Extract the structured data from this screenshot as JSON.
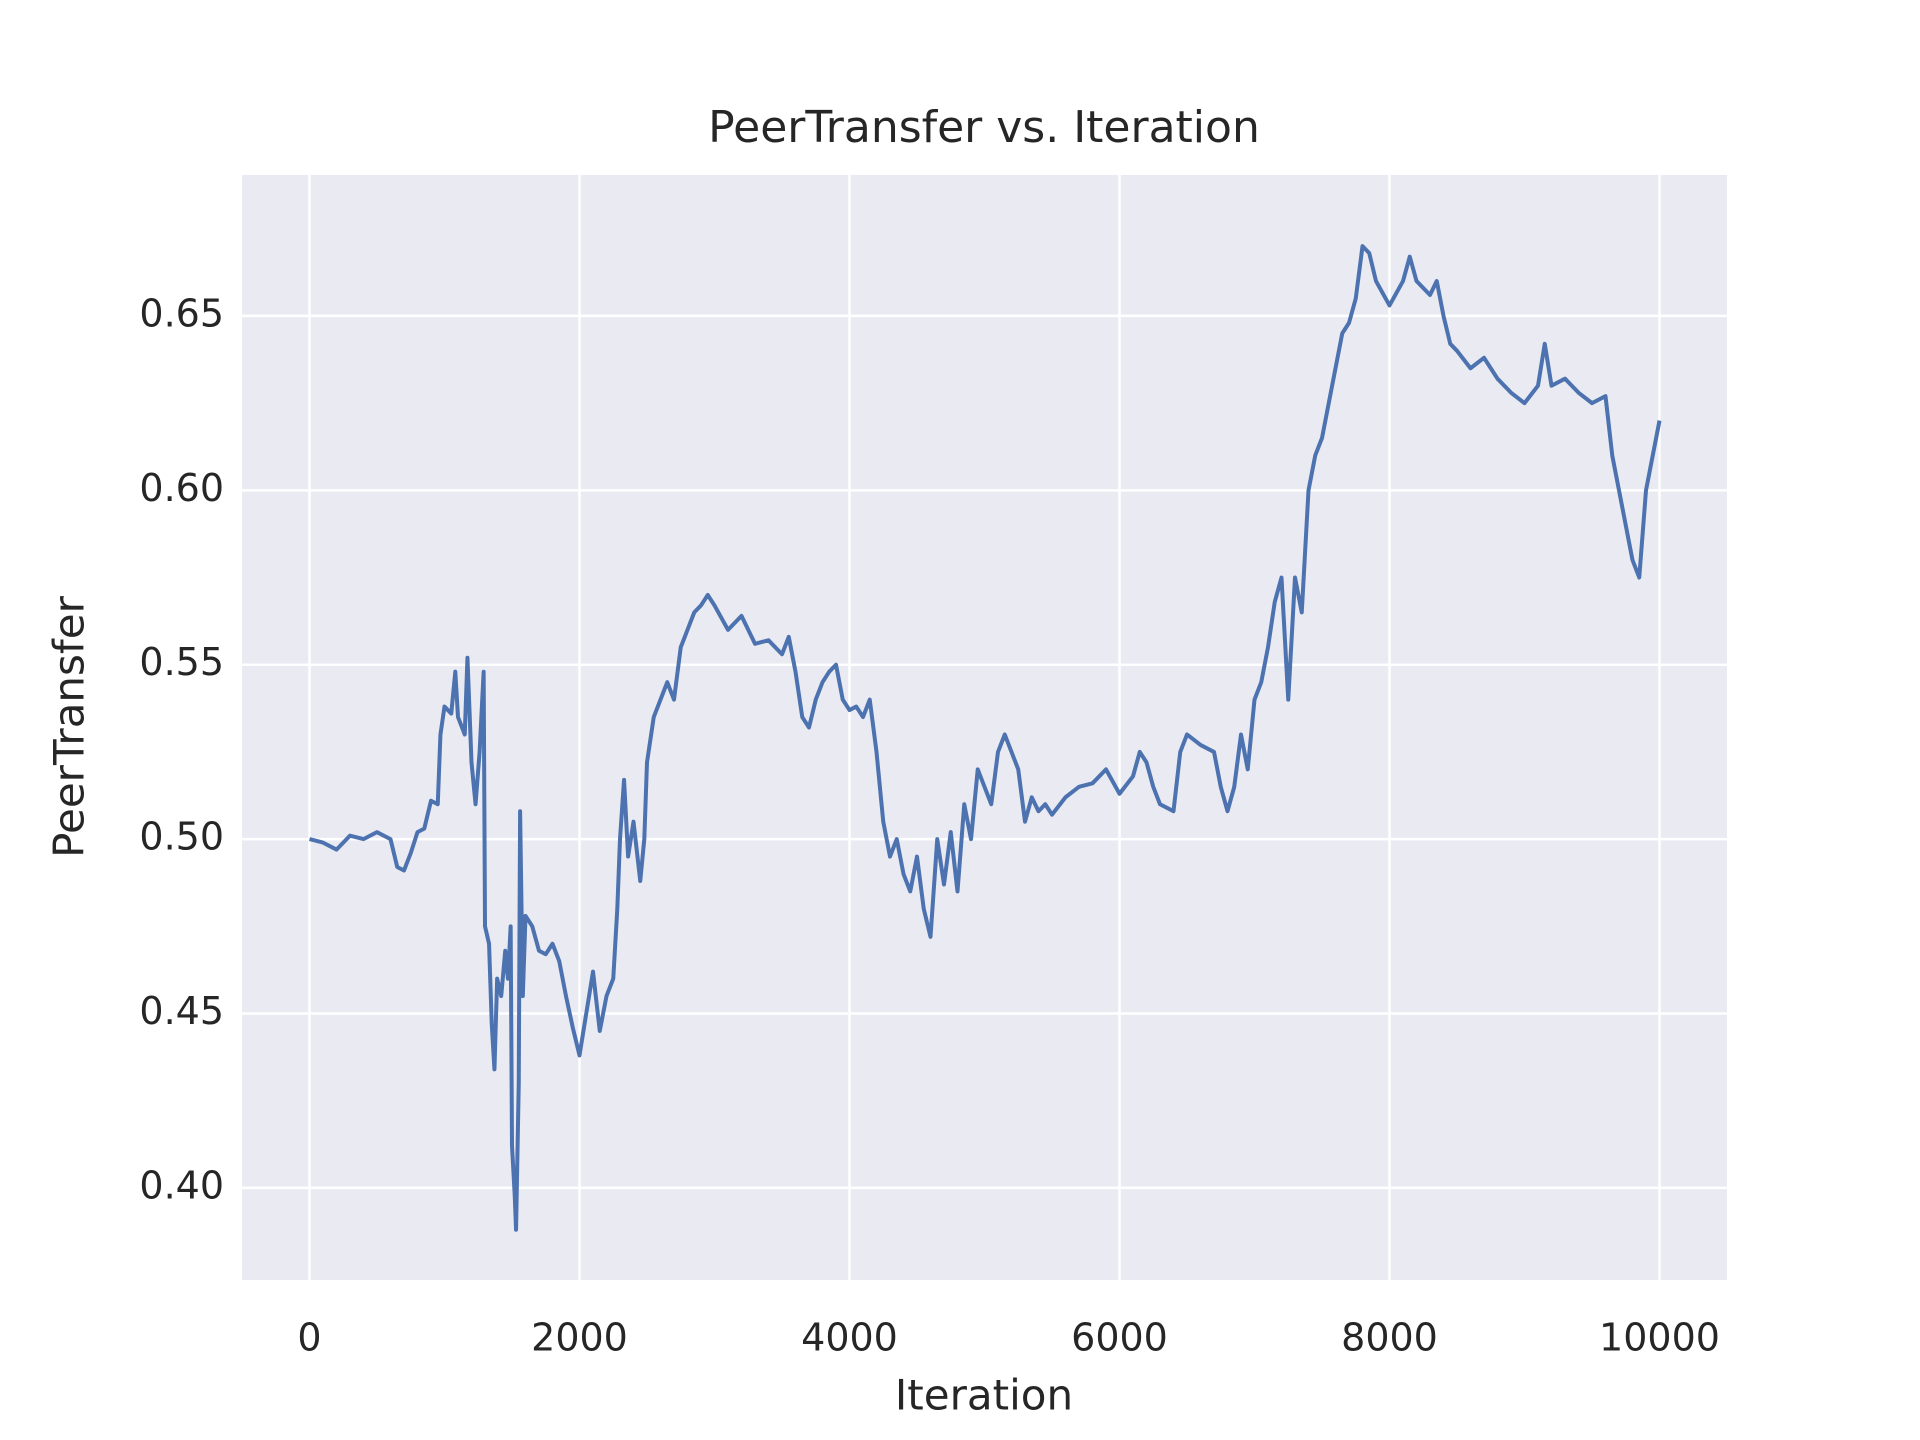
{
  "chart_data": {
    "type": "line",
    "title": "PeerTransfer vs. Iteration",
    "x_label": "Iteration",
    "y_label": "PeerTransfer",
    "x": [
      0,
      100,
      200,
      300,
      400,
      500,
      600,
      650,
      700,
      750,
      800,
      850,
      900,
      950,
      970,
      1000,
      1050,
      1080,
      1100,
      1150,
      1170,
      1200,
      1230,
      1260,
      1290,
      1300,
      1330,
      1350,
      1370,
      1390,
      1420,
      1450,
      1470,
      1490,
      1500,
      1520,
      1530,
      1550,
      1560,
      1580,
      1600,
      1650,
      1700,
      1750,
      1800,
      1850,
      1900,
      1950,
      2000,
      2050,
      2100,
      2150,
      2200,
      2250,
      2280,
      2300,
      2330,
      2360,
      2400,
      2450,
      2480,
      2500,
      2550,
      2600,
      2650,
      2700,
      2750,
      2800,
      2850,
      2900,
      2950,
      3000,
      3100,
      3200,
      3300,
      3400,
      3500,
      3550,
      3600,
      3650,
      3700,
      3750,
      3800,
      3850,
      3900,
      3950,
      4000,
      4050,
      4100,
      4150,
      4200,
      4250,
      4300,
      4350,
      4400,
      4450,
      4500,
      4550,
      4600,
      4650,
      4700,
      4750,
      4800,
      4850,
      4900,
      4950,
      5000,
      5050,
      5100,
      5150,
      5200,
      5250,
      5300,
      5350,
      5400,
      5450,
      5500,
      5600,
      5700,
      5800,
      5900,
      6000,
      6100,
      6150,
      6200,
      6250,
      6300,
      6400,
      6450,
      6500,
      6600,
      6700,
      6750,
      6800,
      6850,
      6900,
      6950,
      7000,
      7050,
      7100,
      7150,
      7200,
      7250,
      7300,
      7350,
      7400,
      7450,
      7500,
      7550,
      7600,
      7650,
      7700,
      7750,
      7800,
      7850,
      7900,
      8000,
      8100,
      8150,
      8200,
      8300,
      8350,
      8400,
      8450,
      8500,
      8600,
      8700,
      8800,
      8900,
      9000,
      9100,
      9150,
      9200,
      9300,
      9400,
      9500,
      9600,
      9650,
      9700,
      9750,
      9800,
      9850,
      9900,
      9950,
      10000
    ],
    "series": [
      {
        "name": "PeerTransfer",
        "color": "#4c72b0",
        "values": [
          0.5,
          0.499,
          0.497,
          0.501,
          0.5,
          0.502,
          0.5,
          0.492,
          0.491,
          0.496,
          0.502,
          0.503,
          0.511,
          0.51,
          0.53,
          0.538,
          0.536,
          0.548,
          0.535,
          0.53,
          0.552,
          0.522,
          0.51,
          0.525,
          0.548,
          0.475,
          0.47,
          0.447,
          0.434,
          0.46,
          0.455,
          0.468,
          0.46,
          0.475,
          0.412,
          0.398,
          0.388,
          0.43,
          0.508,
          0.455,
          0.478,
          0.475,
          0.468,
          0.467,
          0.47,
          0.465,
          0.455,
          0.446,
          0.438,
          0.45,
          0.462,
          0.445,
          0.455,
          0.46,
          0.48,
          0.5,
          0.517,
          0.495,
          0.505,
          0.488,
          0.5,
          0.522,
          0.535,
          0.54,
          0.545,
          0.54,
          0.555,
          0.56,
          0.565,
          0.567,
          0.57,
          0.567,
          0.56,
          0.564,
          0.556,
          0.557,
          0.553,
          0.558,
          0.548,
          0.535,
          0.532,
          0.54,
          0.545,
          0.548,
          0.55,
          0.54,
          0.537,
          0.538,
          0.535,
          0.54,
          0.525,
          0.505,
          0.495,
          0.5,
          0.49,
          0.485,
          0.495,
          0.48,
          0.472,
          0.5,
          0.487,
          0.502,
          0.485,
          0.51,
          0.5,
          0.52,
          0.515,
          0.51,
          0.525,
          0.53,
          0.525,
          0.52,
          0.505,
          0.512,
          0.508,
          0.51,
          0.507,
          0.512,
          0.515,
          0.516,
          0.52,
          0.513,
          0.518,
          0.525,
          0.522,
          0.515,
          0.51,
          0.508,
          0.525,
          0.53,
          0.527,
          0.525,
          0.515,
          0.508,
          0.515,
          0.53,
          0.52,
          0.54,
          0.545,
          0.555,
          0.568,
          0.575,
          0.54,
          0.575,
          0.565,
          0.6,
          0.61,
          0.615,
          0.625,
          0.635,
          0.645,
          0.648,
          0.655,
          0.67,
          0.668,
          0.66,
          0.653,
          0.66,
          0.667,
          0.66,
          0.656,
          0.66,
          0.65,
          0.642,
          0.64,
          0.635,
          0.638,
          0.632,
          0.628,
          0.625,
          0.63,
          0.642,
          0.63,
          0.632,
          0.628,
          0.625,
          0.627,
          0.61,
          0.6,
          0.59,
          0.58,
          0.575,
          0.6,
          0.61,
          0.62
        ]
      }
    ],
    "xlim": [
      -500,
      10500
    ],
    "ylim": [
      0.3736,
      0.6904
    ],
    "xticks": [
      0,
      2000,
      4000,
      6000,
      8000,
      10000
    ],
    "yticks": [
      {
        "value": 0.4,
        "label": "0.40"
      },
      {
        "value": 0.45,
        "label": "0.45"
      },
      {
        "value": 0.5,
        "label": "0.50"
      },
      {
        "value": 0.55,
        "label": "0.55"
      },
      {
        "value": 0.6,
        "label": "0.60"
      },
      {
        "value": 0.65,
        "label": "0.65"
      }
    ],
    "grid": true
  }
}
